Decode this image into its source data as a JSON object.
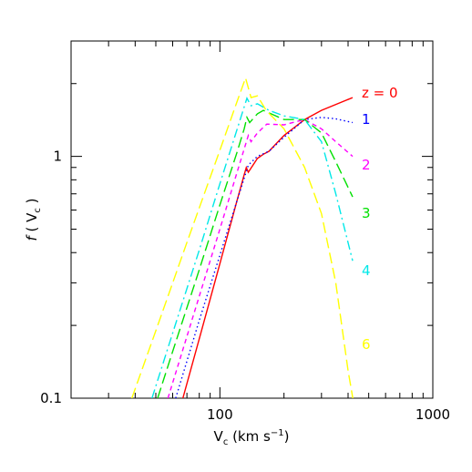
{
  "chart_data": {
    "type": "line",
    "log_x": true,
    "log_y": true,
    "xlabel": [
      "V",
      "c",
      " (km s",
      "−1",
      ")"
    ],
    "ylabel": [
      "f",
      " ( V",
      "c",
      " )"
    ],
    "xlim": [
      20,
      1000
    ],
    "ylim": [
      0.1,
      3
    ],
    "xticks": [
      100,
      1000
    ],
    "yticks": [
      0.1,
      1
    ],
    "minor_xticks": [
      20,
      30,
      40,
      50,
      60,
      70,
      80,
      90,
      200,
      300,
      400,
      500,
      600,
      700,
      800,
      900
    ],
    "minor_yticks": [
      0.2,
      0.3,
      0.4,
      0.5,
      0.6,
      0.7,
      0.8,
      0.9,
      2,
      3
    ],
    "series": [
      {
        "name": "z = 0",
        "color": "#ff0000",
        "dash": "solid",
        "x": [
          67,
          80,
          100,
          120,
          130,
          133,
          136,
          150,
          160,
          170,
          200,
          250,
          300,
          420
        ],
        "values": [
          0.1,
          0.176,
          0.36,
          0.65,
          0.84,
          0.9,
          0.86,
          0.98,
          1.02,
          1.05,
          1.22,
          1.42,
          1.55,
          1.75
        ]
      },
      {
        "name": "1",
        "color": "#0000ff",
        "dash": "dotted",
        "x": [
          62,
          80,
          100,
          120,
          136,
          150,
          170,
          200,
          250,
          300,
          350,
          420
        ],
        "values": [
          0.1,
          0.21,
          0.39,
          0.65,
          0.92,
          1.0,
          1.05,
          1.2,
          1.42,
          1.45,
          1.43,
          1.38
        ]
      },
      {
        "name": "2",
        "color": "#ff00ff",
        "dash": "dashed",
        "x": [
          57,
          70,
          100,
          120,
          136,
          140,
          150,
          166,
          200,
          250,
          300,
          350,
          420
        ],
        "values": [
          0.1,
          0.18,
          0.5,
          0.85,
          1.22,
          1.15,
          1.25,
          1.36,
          1.35,
          1.42,
          1.3,
          1.15,
          1.0
        ]
      },
      {
        "name": "3",
        "color": "#00e000",
        "dash": "longdash",
        "x": [
          51,
          60,
          80,
          100,
          120,
          130,
          134,
          138,
          150,
          160,
          200,
          250,
          300,
          350,
          420
        ],
        "values": [
          0.1,
          0.156,
          0.34,
          0.63,
          1.03,
          1.3,
          1.45,
          1.38,
          1.5,
          1.55,
          1.42,
          1.42,
          1.25,
          0.95,
          0.68
        ]
      },
      {
        "name": "4",
        "color": "#00e8e8",
        "dash": "dashdot",
        "x": [
          48,
          60,
          80,
          100,
          120,
          134,
          140,
          150,
          170,
          200,
          250,
          300,
          350,
          420
        ],
        "values": [
          0.1,
          0.186,
          0.41,
          0.77,
          1.28,
          1.74,
          1.62,
          1.65,
          1.55,
          1.47,
          1.42,
          1.15,
          0.7,
          0.37
        ]
      },
      {
        "name": "6",
        "color": "#ffff00",
        "dash": "longdash",
        "x": [
          38.6,
          50,
          70,
          100,
          120,
          132,
          140,
          150,
          165,
          200,
          250,
          300,
          350,
          400,
          421
        ],
        "values": [
          0.1,
          0.19,
          0.44,
          1.06,
          1.67,
          2.11,
          1.75,
          1.78,
          1.55,
          1.3,
          0.9,
          0.58,
          0.3,
          0.13,
          0.1
        ]
      }
    ]
  }
}
